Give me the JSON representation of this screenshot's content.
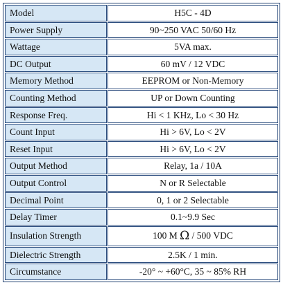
{
  "spec_table": {
    "rows": [
      {
        "label": "Model",
        "value": "H5C - 4D"
      },
      {
        "label": "Power Supply",
        "value": "90~250 VAC 50/60 Hz"
      },
      {
        "label": "Wattage",
        "value": "5VA max."
      },
      {
        "label": "DC Output",
        "value": "60 mV / 12 VDC"
      },
      {
        "label": "Memory Method",
        "value": "EEPROM or Non-Memory"
      },
      {
        "label": "Counting Method",
        "value": "UP or Down Counting"
      },
      {
        "label": "Response Freq.",
        "value": "Hi < 1 KHz, Lo < 30 Hz"
      },
      {
        "label": "Count Input",
        "value": "Hi > 6V, Lo < 2V"
      },
      {
        "label": "Reset Input",
        "value": "Hi > 6V, Lo < 2V"
      },
      {
        "label": "Output Method",
        "value": "Relay, 1a / 10A"
      },
      {
        "label": "Output Control",
        "value": "N or R Selectable"
      },
      {
        "label": "Decimal Point",
        "value": "0, 1 or 2 Selectable"
      },
      {
        "label": "Delay Timer",
        "value": "0.1~9.9 Sec"
      },
      {
        "label": "Insulation Strength",
        "value_prefix": "100 M ",
        "value_symbol": "Ω",
        "value_suffix": " / 500 VDC"
      },
      {
        "label": "Dielectric Strength",
        "value": "2.5K / 1 min."
      },
      {
        "label": "Circumstance",
        "value": "-20° ~ +60°C, 35 ~ 85% RH"
      }
    ]
  }
}
